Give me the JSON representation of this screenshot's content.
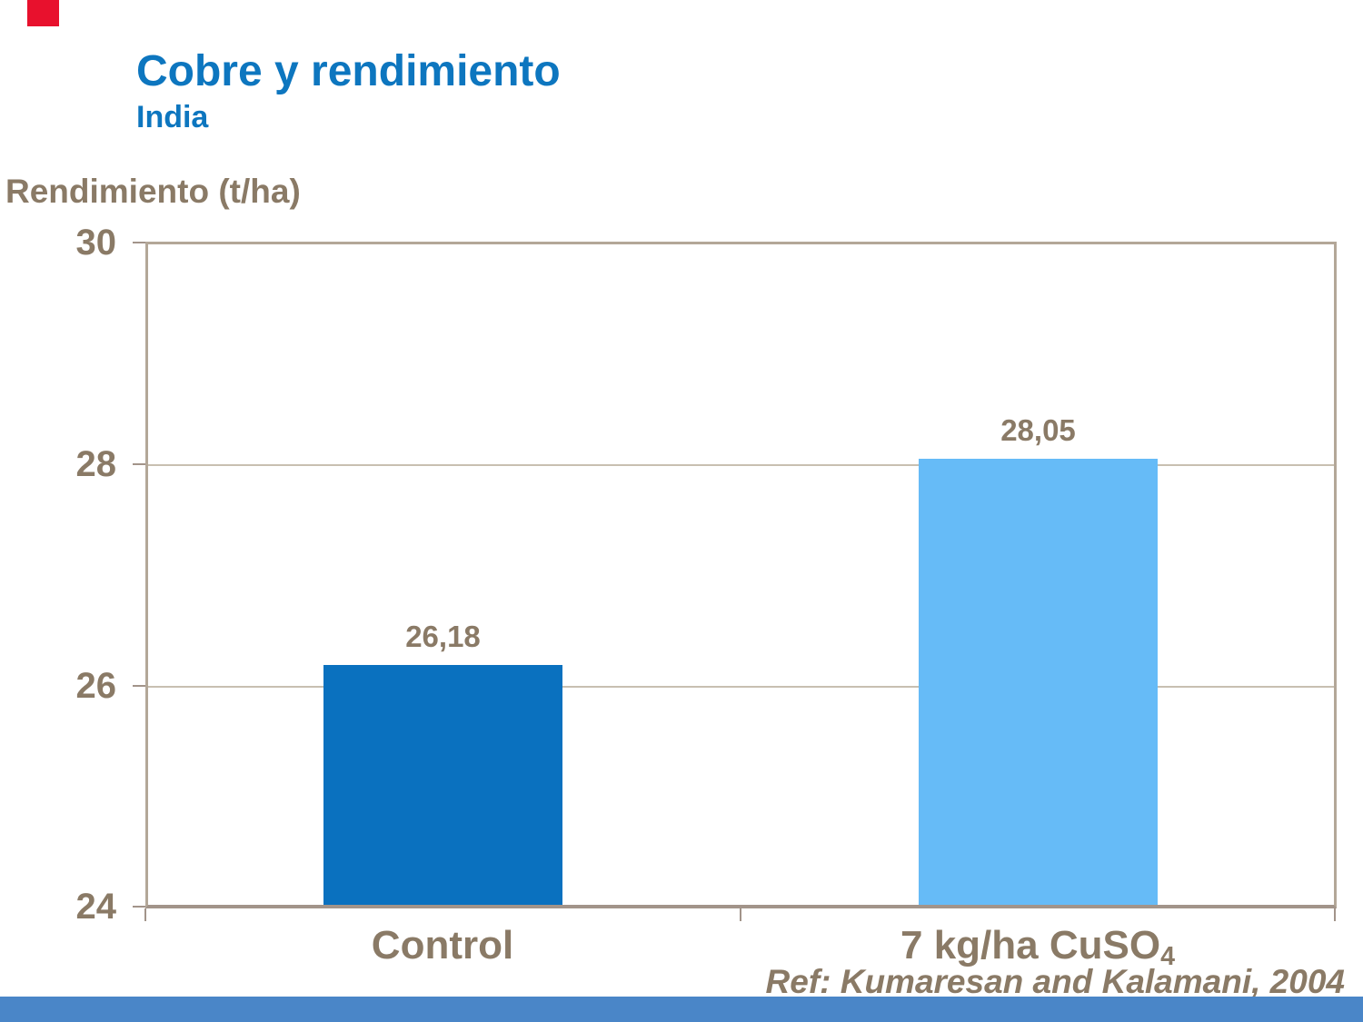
{
  "slide": {
    "title": "Cobre y rendimiento",
    "subtitle": "India",
    "reference": "Ref: Kumaresan  and Kalamani,  2004",
    "accent_red": "#e8112d",
    "footer_blue": "#4a86c8",
    "title_blue": "#0d76bf",
    "text_brown": "#8a7a66"
  },
  "chart_data": {
    "type": "bar",
    "title": "Cobre y rendimiento (India)",
    "ylabel": "Rendimiento (t/ha)",
    "xlabel": "",
    "categories": [
      "Control",
      "7 kg/ha CuSO4"
    ],
    "category_parts": [
      {
        "text": "Control",
        "sub": ""
      },
      {
        "text": "7 kg/ha CuSO",
        "sub": "4"
      }
    ],
    "values": [
      26.18,
      28.05
    ],
    "value_labels": [
      "26,18",
      "28,05"
    ],
    "ylim": [
      24,
      30
    ],
    "yticks": [
      24,
      26,
      28,
      30
    ],
    "ytick_labels_top_to_bottom": [
      "30",
      "28",
      "26",
      "24"
    ],
    "grid": true,
    "legend_position": "none",
    "bar_colors": [
      "#0a71bf",
      "#66bbf7"
    ],
    "axis_color": "#b3a798",
    "gridline_color": "#c8bfb1",
    "label_color": "#8a7a66"
  }
}
